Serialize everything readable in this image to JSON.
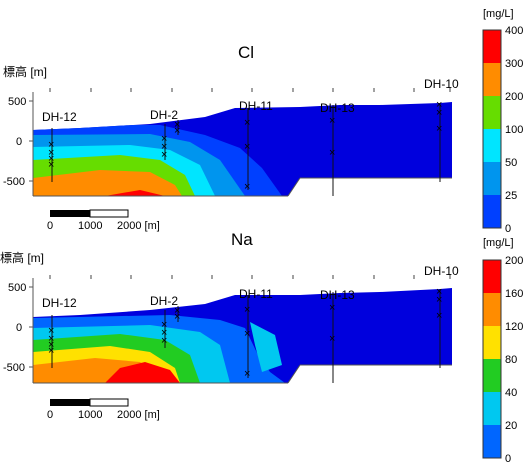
{
  "top": {
    "title": "Cl",
    "ylabel": "標高 [m]",
    "units": "[mg/L]",
    "y_ticks": [
      "500",
      "0",
      "-500"
    ],
    "colorbar": [
      {
        "label": "400",
        "color": "#ff0000"
      },
      {
        "label": "300",
        "color": "#ff8c00"
      },
      {
        "label": "200",
        "color": "#66dd00"
      },
      {
        "label": "100",
        "color": "#00e5ff"
      },
      {
        "label": "50",
        "color": "#0095ee"
      },
      {
        "label": "25",
        "color": "#0040ff"
      },
      {
        "label": "0",
        "color": "#0000dd"
      }
    ],
    "scale": {
      "labels": [
        "0",
        "1000",
        "2000 [m]"
      ]
    }
  },
  "bottom": {
    "title": "Na",
    "ylabel": "標高 [m]",
    "units": "[mg/L]",
    "y_ticks": [
      "500",
      "0",
      "-500"
    ],
    "colorbar": [
      {
        "label": "200",
        "color": "#ff0000"
      },
      {
        "label": "160",
        "color": "#ff8c00"
      },
      {
        "label": "120",
        "color": "#ffe100"
      },
      {
        "label": "80",
        "color": "#22cc22"
      },
      {
        "label": "40",
        "color": "#00c8f0"
      },
      {
        "label": "20",
        "color": "#0066ff"
      },
      {
        "label": "0",
        "color": "#0000dd"
      }
    ],
    "scale": {
      "labels": [
        "0",
        "1000",
        "2000 [m]"
      ]
    }
  },
  "boreholes": [
    "DH-12",
    "DH-2",
    "DH-11",
    "DH-13",
    "DH-10"
  ]
}
